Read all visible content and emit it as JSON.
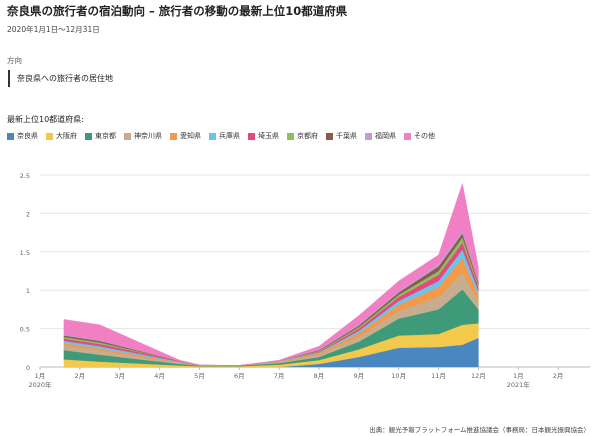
{
  "header": {
    "title": "奈良県の旅行者の宿泊動向 – 旅行者の移動の最新上位10都道府県",
    "date_range": "2020年1月1日〜12月31日"
  },
  "direction": {
    "label": "方向",
    "value": "奈良県への旅行者の居住地"
  },
  "legend_heading": "最新上位10都道府県:",
  "source": "出典：観光予報プラットフォーム推進協議会（事務局：日本観光振興協会）",
  "chart_data": {
    "type": "area",
    "stacked": true,
    "x_ticks": [
      "1月",
      "2月",
      "3月",
      "4月",
      "5月",
      "6月",
      "7月",
      "8月",
      "9月",
      "10月",
      "11月",
      "12月",
      "1月",
      "2月"
    ],
    "year_labels": [
      "2020年",
      "2021年"
    ],
    "y_ticks": [
      "0",
      "0.5",
      "1",
      "1.5",
      "2",
      "2.5"
    ],
    "ylim": [
      0,
      2.5
    ],
    "grid": true,
    "legend_position": "top-left",
    "x_points": [
      1.6,
      2.5,
      4.5,
      5.0,
      6.0,
      7.0,
      8.0,
      9.0,
      10.0,
      11.0,
      11.6,
      12.0
    ],
    "series": [
      {
        "name": "奈良県",
        "color": "#4a86c0",
        "values": [
          0.0,
          0.0,
          0.0,
          0.0,
          0.0,
          0.0,
          0.04,
          0.13,
          0.25,
          0.26,
          0.29,
          0.38
        ]
      },
      {
        "name": "大阪府",
        "color": "#f2c94c",
        "values": [
          0.1,
          0.07,
          0.02,
          0.01,
          0.01,
          0.03,
          0.05,
          0.1,
          0.16,
          0.17,
          0.26,
          0.19
        ]
      },
      {
        "name": "東京都",
        "color": "#3e9a78",
        "values": [
          0.12,
          0.09,
          0.02,
          0.01,
          0.01,
          0.02,
          0.04,
          0.1,
          0.22,
          0.32,
          0.46,
          0.18
        ]
      },
      {
        "name": "神奈川県",
        "color": "#c7ad8f",
        "values": [
          0.06,
          0.05,
          0.01,
          0.0,
          0.0,
          0.01,
          0.03,
          0.06,
          0.1,
          0.16,
          0.22,
          0.1
        ]
      },
      {
        "name": "愛知県",
        "color": "#f2994a",
        "values": [
          0.03,
          0.03,
          0.01,
          0.0,
          0.0,
          0.01,
          0.02,
          0.05,
          0.08,
          0.13,
          0.19,
          0.08
        ]
      },
      {
        "name": "兵庫県",
        "color": "#6fc3ea",
        "values": [
          0.03,
          0.03,
          0.01,
          0.0,
          0.0,
          0.01,
          0.01,
          0.03,
          0.05,
          0.08,
          0.11,
          0.06
        ]
      },
      {
        "name": "埼玉県",
        "color": "#e8467c",
        "values": [
          0.03,
          0.03,
          0.01,
          0.0,
          0.0,
          0.0,
          0.01,
          0.03,
          0.05,
          0.08,
          0.09,
          0.05
        ]
      },
      {
        "name": "京都府",
        "color": "#8cbf5e",
        "values": [
          0.02,
          0.02,
          0.0,
          0.0,
          0.0,
          0.0,
          0.01,
          0.02,
          0.03,
          0.05,
          0.07,
          0.03
        ]
      },
      {
        "name": "千葉県",
        "color": "#8b5a4e",
        "values": [
          0.02,
          0.02,
          0.0,
          0.0,
          0.0,
          0.0,
          0.01,
          0.02,
          0.03,
          0.06,
          0.05,
          0.03
        ]
      },
      {
        "name": "福岡県",
        "color": "#c39bd3",
        "values": [
          0.02,
          0.01,
          0.0,
          0.0,
          0.0,
          0.0,
          0.01,
          0.02,
          0.02,
          0.04,
          0.04,
          0.02
        ]
      },
      {
        "name": "その他",
        "color": "#f07fc4",
        "values": [
          0.19,
          0.2,
          0.01,
          0.01,
          0.0,
          0.01,
          0.04,
          0.11,
          0.13,
          0.11,
          0.61,
          0.18
        ]
      }
    ]
  }
}
